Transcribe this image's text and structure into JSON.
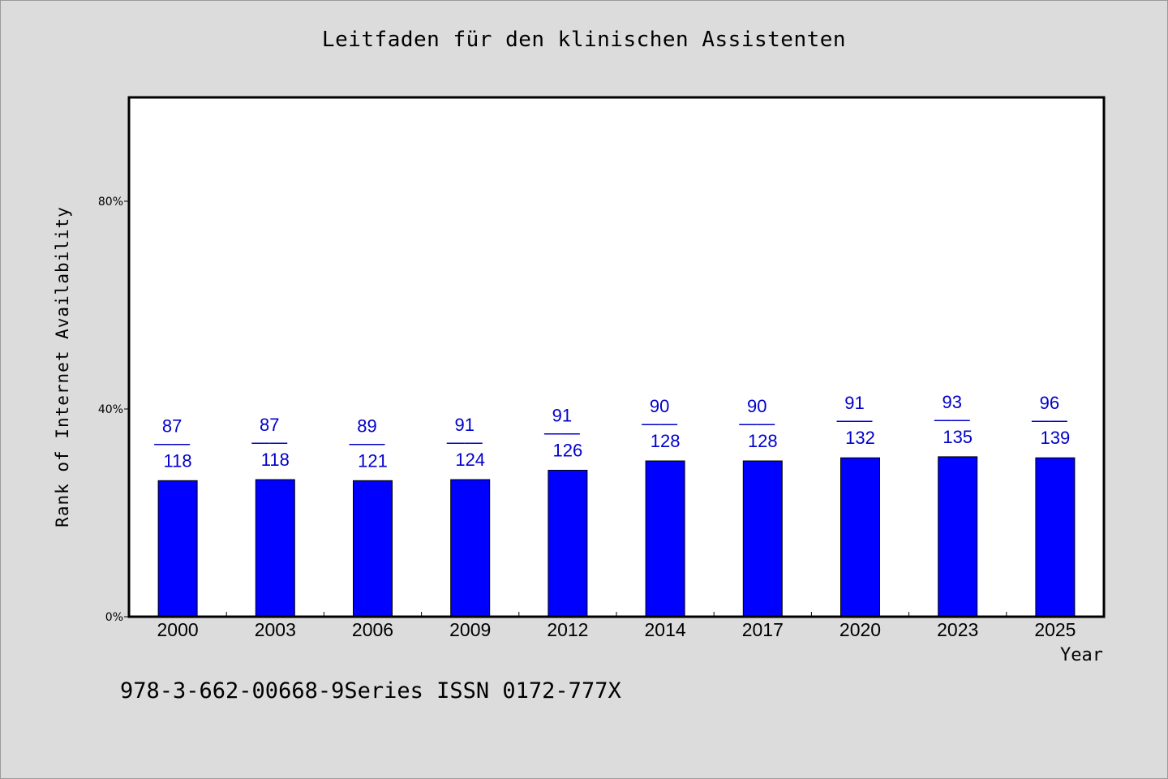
{
  "chart_data": {
    "type": "bar",
    "title": "Leitfaden für den klinischen Assistenten",
    "xlabel": "Year",
    "ylabel": "Rank of Internet Availability",
    "categories": [
      "2000",
      "2003",
      "2006",
      "2009",
      "2012",
      "2014",
      "2017",
      "2020",
      "2023",
      "2025"
    ],
    "values": [
      26.2,
      26.4,
      26.2,
      26.4,
      28.2,
      30.0,
      30.0,
      30.6,
      30.8,
      30.6
    ],
    "bar_labels": [
      {
        "top": "87",
        "mid": "——",
        "bottom": "118"
      },
      {
        "top": "87",
        "mid": "——",
        "bottom": "118"
      },
      {
        "top": "89",
        "mid": "——",
        "bottom": "121"
      },
      {
        "top": "91",
        "mid": "——",
        "bottom": "124"
      },
      {
        "top": "91",
        "mid": "——",
        "bottom": "126"
      },
      {
        "top": "90",
        "mid": "——",
        "bottom": "128"
      },
      {
        "top": "90",
        "mid": "——",
        "bottom": "128"
      },
      {
        "top": "91",
        "mid": "——",
        "bottom": "132"
      },
      {
        "top": "93",
        "mid": "——",
        "bottom": "135"
      },
      {
        "top": "96",
        "mid": "——",
        "bottom": "139"
      }
    ],
    "ylim": [
      0,
      100
    ],
    "yticks": [
      0,
      40,
      80
    ],
    "ytick_labels": [
      "0%",
      "40%",
      "80%"
    ],
    "grid": false,
    "legend": "none",
    "colors": {
      "bar": "#0000ff",
      "label": "#0000cc",
      "background": "#dcdcdc",
      "plot_background": "#ffffff"
    }
  },
  "footer": {
    "text": "978-3-662-00668-9Series ISSN 0172-777X"
  }
}
